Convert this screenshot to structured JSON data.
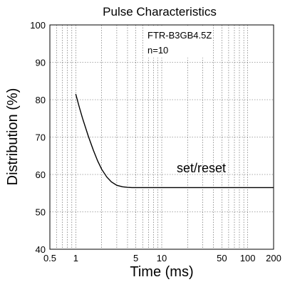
{
  "chart_data": {
    "type": "line",
    "title": "Pulse Characteristics",
    "xlabel": "Time (ms)",
    "ylabel": "Distribution (%)",
    "xscale": "log",
    "xlim": [
      0.5,
      200
    ],
    "ylim": [
      40,
      100
    ],
    "x_ticks": [
      0.5,
      1,
      5,
      10,
      50,
      100,
      200
    ],
    "x_tick_labels": [
      "0.5",
      "1",
      "5",
      "10",
      "50",
      "100",
      "200"
    ],
    "y_ticks": [
      40,
      50,
      60,
      70,
      80,
      90,
      100
    ],
    "y_tick_labels": [
      "40",
      "50",
      "60",
      "70",
      "80",
      "90",
      "100"
    ],
    "grid": true,
    "annotations": [
      "FTR-B3GB4.5Z",
      "n=10"
    ],
    "series": [
      {
        "name": "set/reset",
        "color": "#000000",
        "x": [
          1.0,
          1.1,
          1.2,
          1.4,
          1.6,
          1.8,
          2.0,
          2.3,
          2.6,
          3.0,
          3.5,
          4.0,
          4.5,
          5,
          7,
          10,
          20,
          50,
          100,
          200
        ],
        "y": [
          81.5,
          78.0,
          75.0,
          70.2,
          66.5,
          63.6,
          61.4,
          59.3,
          58.0,
          57.1,
          56.7,
          56.55,
          56.5,
          56.5,
          56.5,
          56.5,
          56.5,
          56.5,
          56.5,
          56.5
        ]
      }
    ]
  }
}
